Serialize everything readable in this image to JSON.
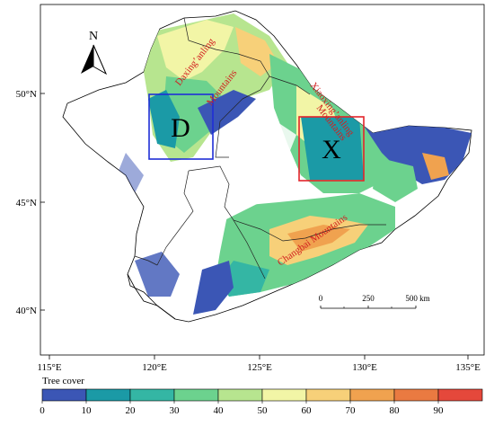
{
  "map": {
    "lat_labels": [
      "50°N",
      "45°N",
      "40°N"
    ],
    "lon_labels": [
      "115°E",
      "120°E",
      "125°E",
      "130°E",
      "135°E"
    ],
    "north_label": "N",
    "regions": {
      "d_label": "D",
      "x_label": "X",
      "d_color": "#1f2fd6",
      "x_color": "#e3242b"
    },
    "mountain_labels": {
      "daxing_1": "Daxing’anling",
      "daxing_2": "Mountains",
      "xiaoxing_1": "Xiaoxing’anling",
      "xiaoxing_2": "Mountains",
      "changbai": "Changbai Mountains"
    },
    "label_color": "#d21f1f",
    "scale_bar": {
      "ticks": [
        "0",
        "250",
        "500 km"
      ]
    }
  },
  "legend": {
    "title": "Tree cover",
    "ticks": [
      "0",
      "10",
      "20",
      "30",
      "40",
      "50",
      "60",
      "70",
      "80",
      "90"
    ],
    "colors": [
      "#3b56b5",
      "#1b9aa6",
      "#34b6a4",
      "#6cd28e",
      "#b7e58f",
      "#f2f5a6",
      "#f7d079",
      "#f0a24f",
      "#ea7a41",
      "#e5483b"
    ]
  }
}
